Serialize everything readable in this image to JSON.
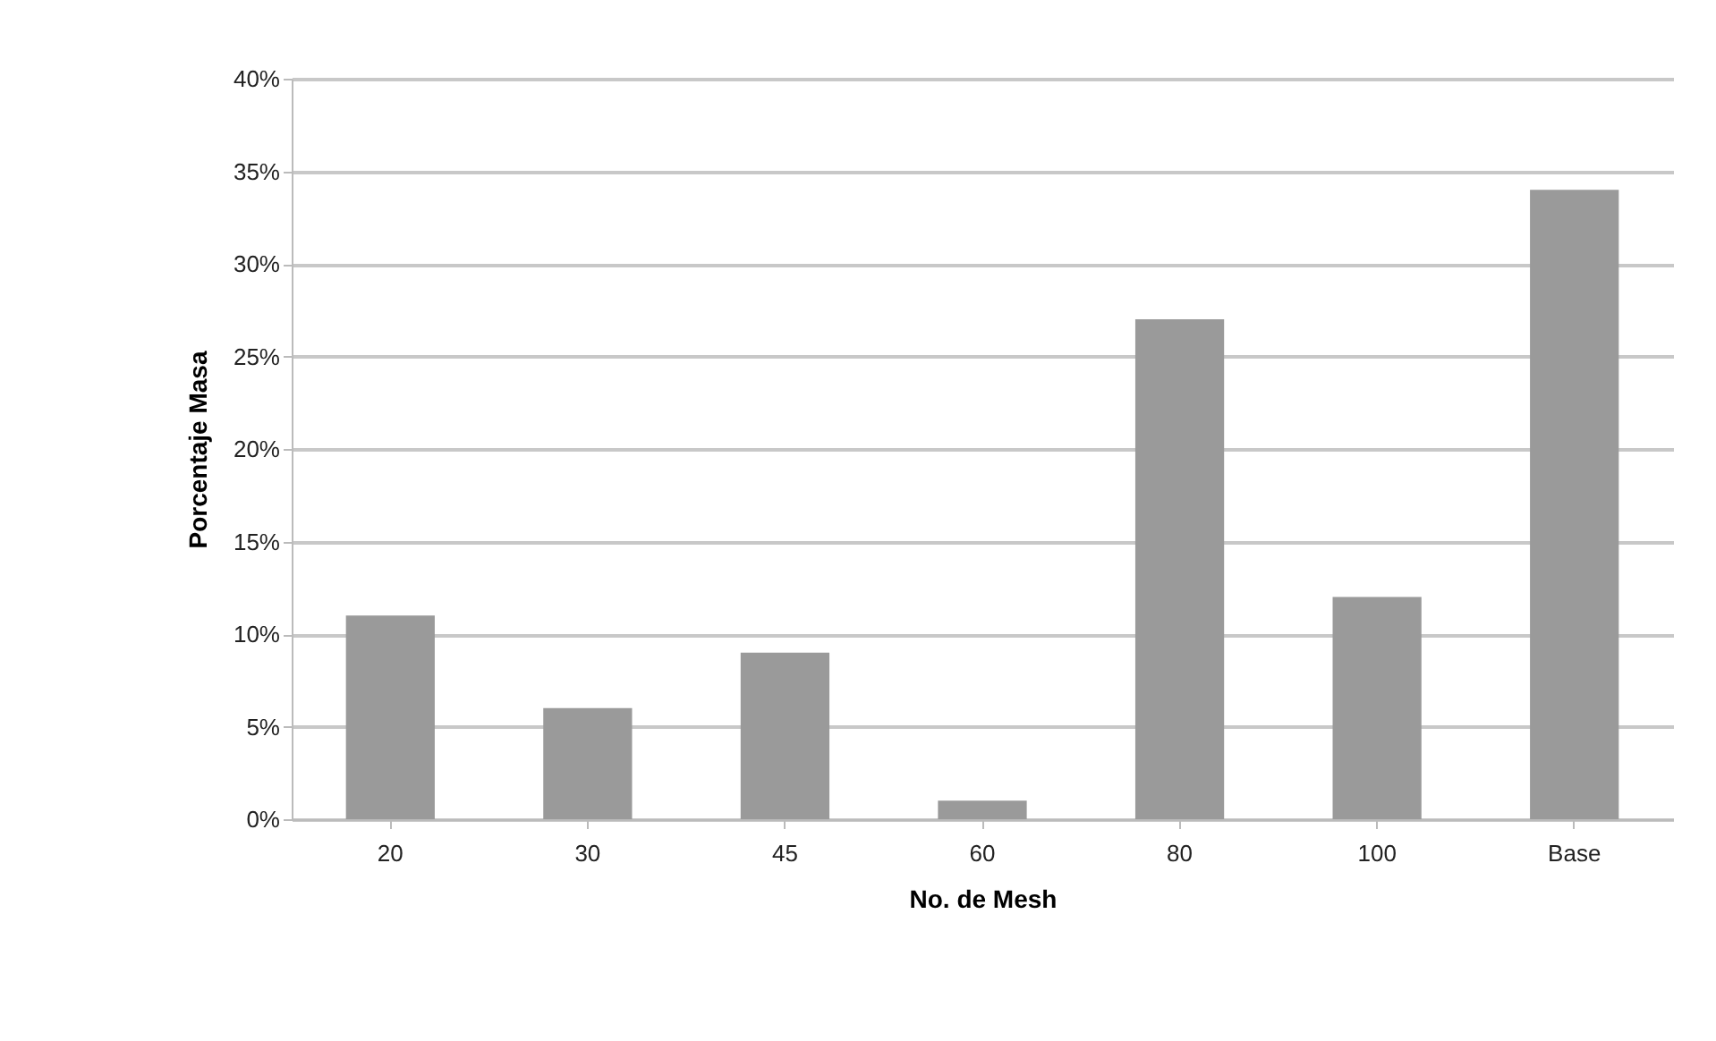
{
  "chart_data": {
    "type": "bar",
    "xlabel": "No. de Mesh",
    "ylabel": "Porcentaje Masa",
    "categories": [
      "20",
      "30",
      "45",
      "60",
      "80",
      "100",
      "Base"
    ],
    "values": [
      11,
      6,
      9,
      1,
      27,
      12,
      34
    ],
    "color": "#9a9a9a",
    "ylim": [
      0,
      40
    ],
    "yticks": [
      {
        "value": 0,
        "label": "0%"
      },
      {
        "value": 5,
        "label": "5%"
      },
      {
        "value": 10,
        "label": "10%"
      },
      {
        "value": 15,
        "label": "15%"
      },
      {
        "value": 20,
        "label": "20%"
      },
      {
        "value": 25,
        "label": "25%"
      },
      {
        "value": 30,
        "label": "30%"
      },
      {
        "value": 35,
        "label": "35%"
      },
      {
        "value": 40,
        "label": "40%"
      }
    ],
    "grid": "y"
  }
}
